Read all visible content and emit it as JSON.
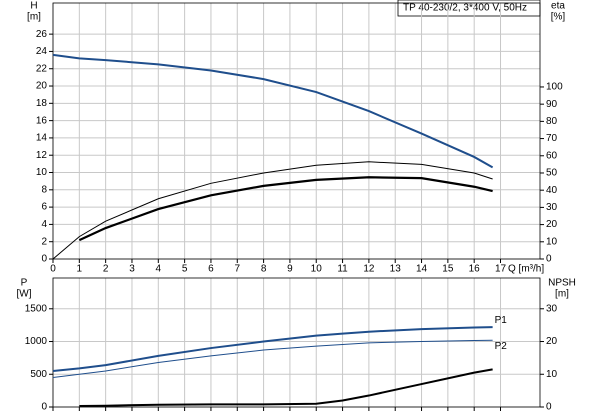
{
  "chart_data": [
    {
      "type": "line",
      "title": "TP 40-230/2, 3*400 V, 50Hz",
      "y_label": "H",
      "y_unit": "[m]",
      "y2_label": "eta",
      "y2_unit": "[%]",
      "x_label": "Q [m³/h]",
      "x": [
        0,
        1,
        2,
        4,
        6,
        8,
        10,
        12,
        14,
        16,
        16.7
      ],
      "series": [
        {
          "color": "#1f4e8c",
          "line_width": 2,
          "values": [
            23.6,
            23.2,
            23.0,
            22.5,
            21.8,
            20.8,
            19.3,
            17.1,
            14.5,
            11.8,
            10.6
          ]
        },
        {
          "color": "#000000",
          "line_width": 1,
          "axis": "y2",
          "values": [
            0,
            13,
            22,
            35,
            44,
            50,
            54.5,
            56.5,
            55,
            50,
            46.5
          ]
        },
        {
          "color": "#000000",
          "line_width": 2.2,
          "axis": "y2",
          "values": [
            null,
            11,
            18,
            29,
            37,
            42.5,
            46,
            47.5,
            47,
            42,
            39.5
          ]
        }
      ],
      "xlim": [
        0,
        18.5
      ],
      "xticks": [
        0,
        1,
        2,
        3,
        4,
        5,
        6,
        7,
        8,
        9,
        10,
        11,
        12,
        13,
        14,
        15,
        16,
        17
      ],
      "ylim": [
        0,
        29.6
      ],
      "yticks": [
        0,
        2,
        4,
        6,
        8,
        10,
        12,
        14,
        16,
        18,
        20,
        22,
        24,
        26
      ],
      "y2lim": [
        0,
        148.8
      ],
      "y2ticks": [
        0,
        10,
        20,
        30,
        40,
        50,
        60,
        70,
        80,
        90,
        100
      ],
      "grid": true,
      "show_xtick_labels": true
    },
    {
      "type": "line",
      "y_label": "P",
      "y_unit": "[W]",
      "y2_label": "NPSH",
      "y2_unit": "[m]",
      "x": [
        0,
        1,
        2,
        4,
        6,
        8,
        10,
        11,
        12,
        14,
        16,
        16.7
      ],
      "series": [
        {
          "name": "P1",
          "color": "#1f4e8c",
          "line_width": 2,
          "values": [
            550,
            590,
            640,
            780,
            900,
            1000,
            1090,
            1120,
            1150,
            1190,
            1215,
            1220
          ]
        },
        {
          "name": "P2",
          "color": "#1f4e8c",
          "line_width": 1,
          "values": [
            450,
            500,
            550,
            680,
            780,
            870,
            930,
            955,
            980,
            1000,
            1015,
            1020
          ]
        },
        {
          "color": "#000000",
          "line_width": 2,
          "axis": "y2",
          "values": [
            null,
            0.3,
            0.4,
            0.7,
            0.8,
            0.8,
            1.0,
            2,
            3.5,
            7,
            10.5,
            11.5
          ]
        }
      ],
      "xlim": [
        0,
        18.5
      ],
      "xticks": [
        0,
        1,
        2,
        3,
        4,
        5,
        6,
        7,
        8,
        9,
        10,
        11,
        12,
        13,
        14,
        15,
        16,
        17
      ],
      "ylim": [
        0,
        1970
      ],
      "yticks": [
        0,
        500,
        1000,
        1500
      ],
      "y2lim": [
        0,
        39.4
      ],
      "y2ticks": [
        0,
        10,
        20,
        30
      ],
      "grid": true,
      "show_xtick_labels": false
    }
  ]
}
